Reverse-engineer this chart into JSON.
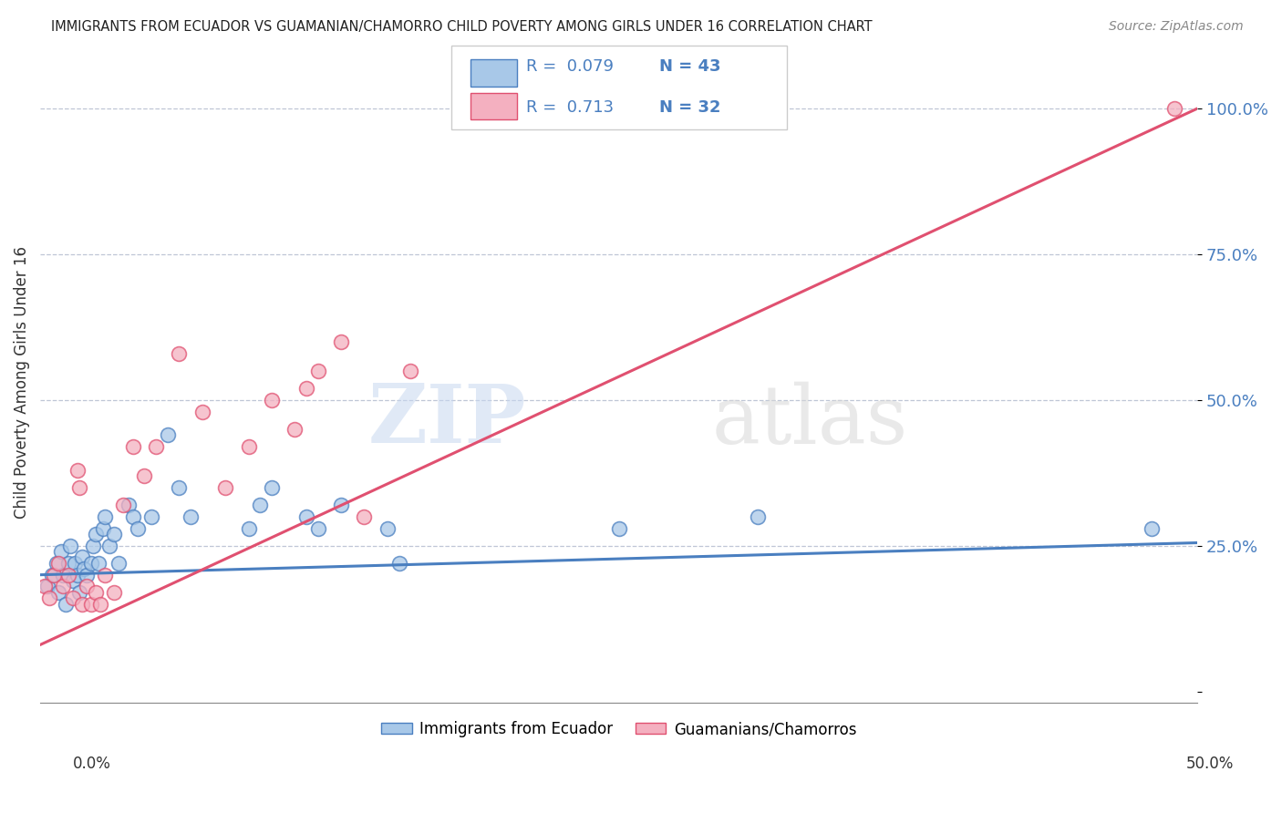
{
  "title": "IMMIGRANTS FROM ECUADOR VS GUAMANIAN/CHAMORRO CHILD POVERTY AMONG GIRLS UNDER 16 CORRELATION CHART",
  "source": "Source: ZipAtlas.com",
  "ylabel": "Child Poverty Among Girls Under 16",
  "xlim": [
    0.0,
    0.5
  ],
  "ylim": [
    -0.02,
    1.08
  ],
  "yticks": [
    0.0,
    0.25,
    0.5,
    0.75,
    1.0
  ],
  "ytick_labels": [
    "",
    "25.0%",
    "50.0%",
    "75.0%",
    "100.0%"
  ],
  "legend_r1": "R =  0.079",
  "legend_n1": "N = 43",
  "legend_r2": "R =  0.713",
  "legend_n2": "N = 32",
  "legend_label1": "Immigrants from Ecuador",
  "legend_label2": "Guamanians/Chamorros",
  "color_blue": "#a8c8e8",
  "color_pink": "#f4b0c0",
  "color_blue_line": "#4a7fc0",
  "color_pink_line": "#e05070",
  "watermark_zip": "ZIP",
  "watermark_atlas": "atlas",
  "blue_points_x": [
    0.003,
    0.005,
    0.007,
    0.008,
    0.009,
    0.01,
    0.011,
    0.012,
    0.013,
    0.014,
    0.015,
    0.016,
    0.017,
    0.018,
    0.019,
    0.02,
    0.022,
    0.023,
    0.024,
    0.025,
    0.027,
    0.028,
    0.03,
    0.032,
    0.034,
    0.038,
    0.04,
    0.042,
    0.048,
    0.055,
    0.06,
    0.065,
    0.09,
    0.095,
    0.1,
    0.115,
    0.12,
    0.13,
    0.15,
    0.155,
    0.25,
    0.31,
    0.48
  ],
  "blue_points_y": [
    0.18,
    0.2,
    0.22,
    0.17,
    0.24,
    0.2,
    0.15,
    0.22,
    0.25,
    0.19,
    0.22,
    0.2,
    0.17,
    0.23,
    0.21,
    0.2,
    0.22,
    0.25,
    0.27,
    0.22,
    0.28,
    0.3,
    0.25,
    0.27,
    0.22,
    0.32,
    0.3,
    0.28,
    0.3,
    0.44,
    0.35,
    0.3,
    0.28,
    0.32,
    0.35,
    0.3,
    0.28,
    0.32,
    0.28,
    0.22,
    0.28,
    0.3,
    0.28
  ],
  "pink_points_x": [
    0.002,
    0.004,
    0.006,
    0.008,
    0.01,
    0.012,
    0.014,
    0.016,
    0.017,
    0.018,
    0.02,
    0.022,
    0.024,
    0.026,
    0.028,
    0.032,
    0.036,
    0.04,
    0.045,
    0.05,
    0.06,
    0.07,
    0.08,
    0.09,
    0.1,
    0.11,
    0.115,
    0.12,
    0.13,
    0.14,
    0.16,
    0.49
  ],
  "pink_points_y": [
    0.18,
    0.16,
    0.2,
    0.22,
    0.18,
    0.2,
    0.16,
    0.38,
    0.35,
    0.15,
    0.18,
    0.15,
    0.17,
    0.15,
    0.2,
    0.17,
    0.32,
    0.42,
    0.37,
    0.42,
    0.58,
    0.48,
    0.35,
    0.42,
    0.5,
    0.45,
    0.52,
    0.55,
    0.6,
    0.3,
    0.55,
    1.0
  ],
  "blue_line_x": [
    0.0,
    0.5
  ],
  "blue_line_y": [
    0.2,
    0.255
  ],
  "pink_line_x": [
    0.0,
    0.5
  ],
  "pink_line_y": [
    0.08,
    1.0
  ],
  "hline_100_y": 1.0,
  "hline_25_y": 0.25,
  "hline_50_y": 0.5,
  "hline_75_y": 0.75,
  "background_color": "#ffffff"
}
